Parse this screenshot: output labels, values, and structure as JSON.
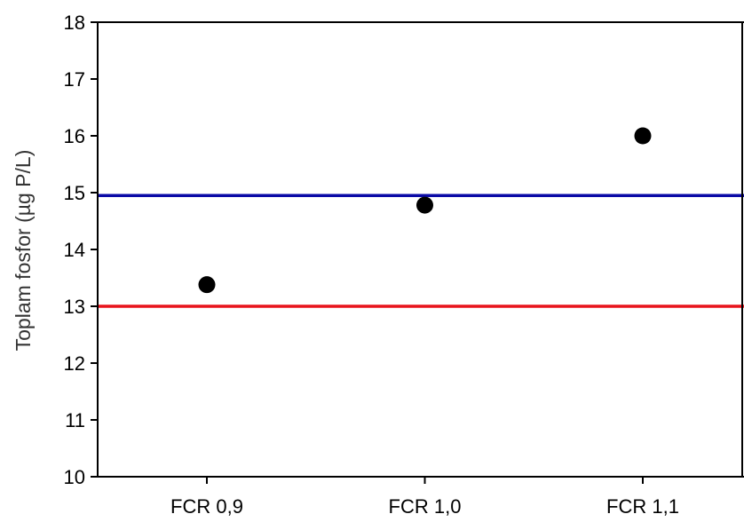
{
  "chart_data": {
    "type": "scatter",
    "title": "",
    "xlabel": "",
    "ylabel": "Toplam fosfor (µg P/L)",
    "categories": [
      "FCR 0,9",
      "FCR 1,0",
      "FCR 1,1"
    ],
    "series": [
      {
        "values": [
          13.38,
          14.78,
          16.0
        ],
        "color": "#000000"
      }
    ],
    "reference_lines": [
      {
        "value": 14.95,
        "color": "#0a0aa6"
      },
      {
        "value": 13.0,
        "color": "#e8141b"
      }
    ],
    "ylim": [
      10,
      18
    ],
    "yticks": [
      10,
      11,
      12,
      13,
      14,
      15,
      16,
      17,
      18
    ],
    "grid": false,
    "legend": "none"
  }
}
